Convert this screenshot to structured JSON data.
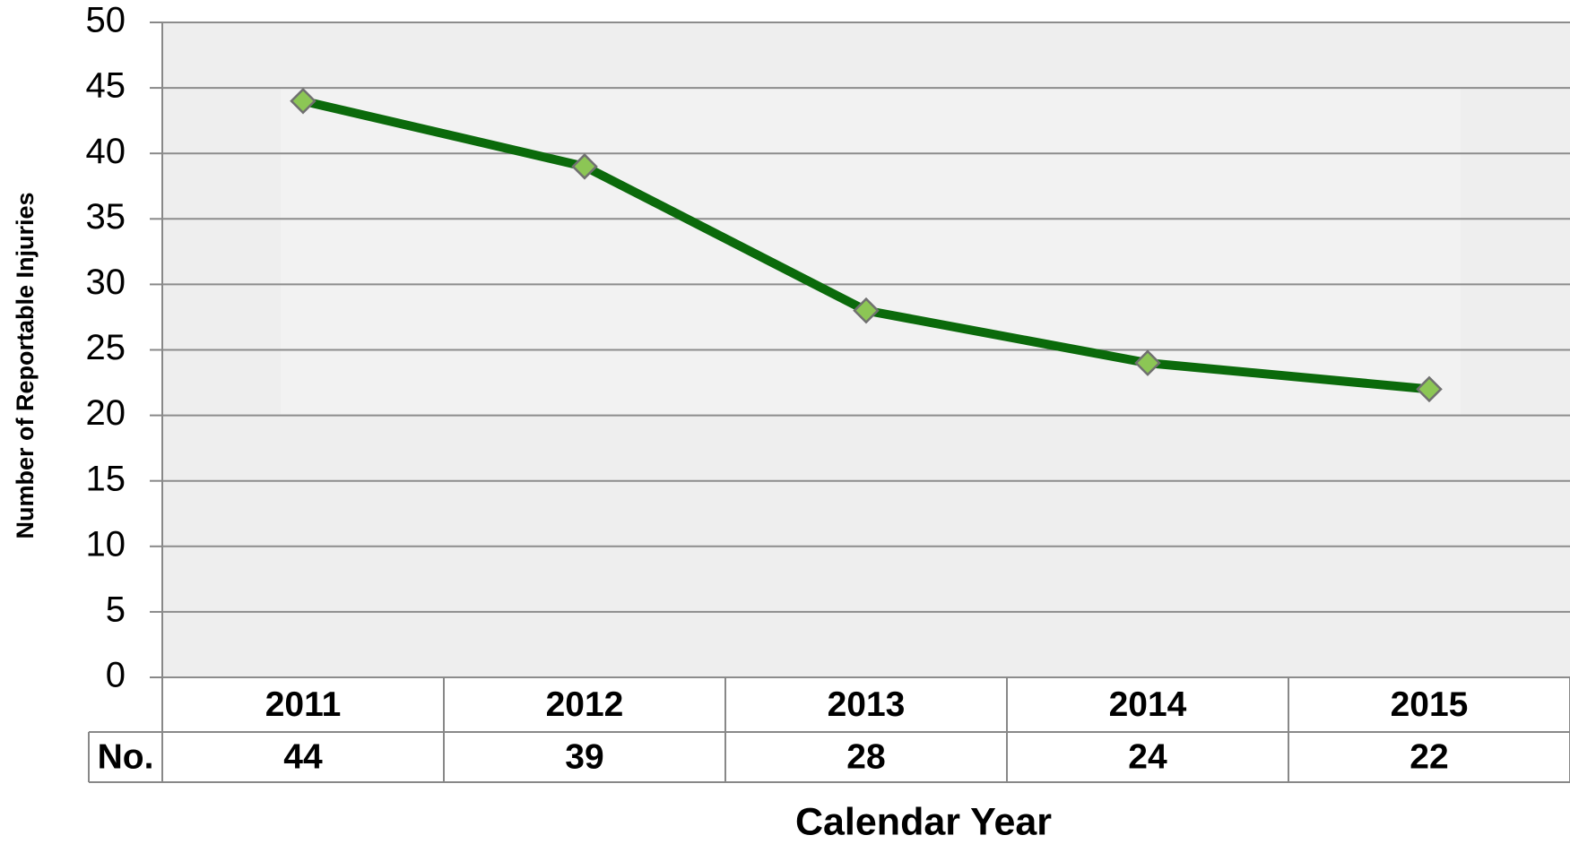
{
  "chart_data": {
    "type": "line",
    "x_label": "Calendar Year",
    "y_label": "Number of Reportable Injuries",
    "categories": [
      "2011",
      "2012",
      "2013",
      "2014",
      "2015"
    ],
    "series": [
      {
        "name": "No.",
        "color": "#0b6a0b",
        "marker_color": "#8cc655",
        "values": [
          44,
          39,
          28,
          24,
          22
        ]
      }
    ],
    "ylim": [
      0,
      50
    ],
    "yticks": [
      0,
      5,
      10,
      15,
      20,
      25,
      30,
      35,
      40,
      45,
      50
    ],
    "grid": true,
    "data_table": true
  }
}
